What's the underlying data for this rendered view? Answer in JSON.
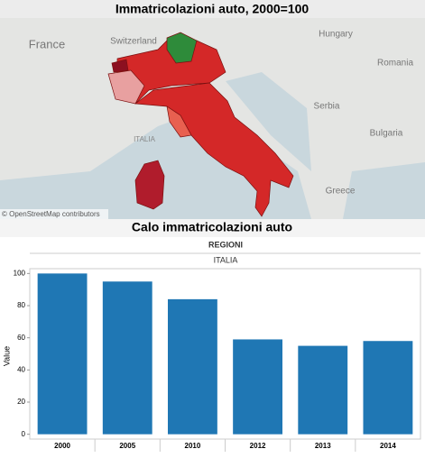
{
  "map": {
    "title": "Immatricolazioni auto, 2000=100",
    "place_labels": [
      "France",
      "Switzerland",
      "Hungary",
      "Romania",
      "Serbia",
      "Bulgaria",
      "Greece",
      "ITALIA"
    ],
    "attribution": "© OpenStreetMap contributors"
  },
  "chart_data": {
    "type": "bar",
    "title": "Calo immatricolazioni auto",
    "column_header": "REGIONI",
    "panel_label": "ITALIA",
    "y_label": "Value",
    "categories": [
      "2000",
      "2005",
      "2010",
      "2012",
      "2013",
      "2014"
    ],
    "values": [
      100,
      95,
      84,
      59,
      55,
      58
    ],
    "color": "#1f77b4",
    "ylim": [
      -3,
      103
    ],
    "yticks": [
      0,
      20,
      40,
      60,
      80,
      100
    ],
    "grid": false
  }
}
